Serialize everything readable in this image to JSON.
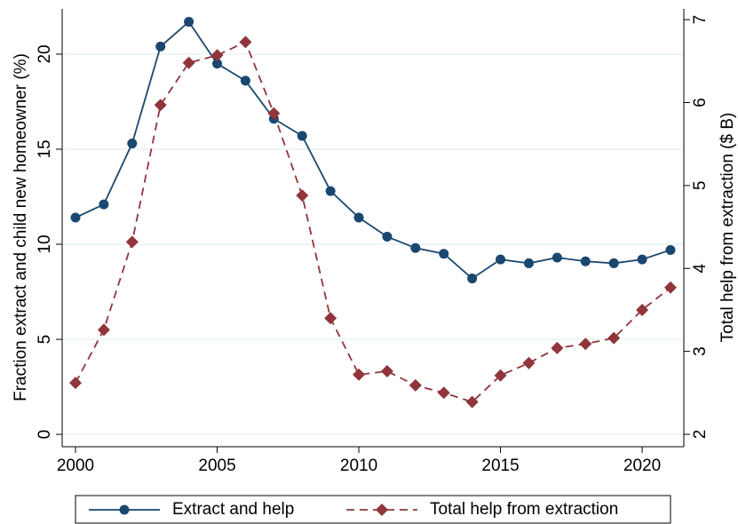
{
  "chart_data": {
    "type": "line",
    "x": [
      2000,
      2001,
      2002,
      2003,
      2004,
      2005,
      2006,
      2007,
      2008,
      2009,
      2010,
      2011,
      2012,
      2013,
      2014,
      2015,
      2016,
      2017,
      2018,
      2019,
      2020,
      2021
    ],
    "series": [
      {
        "name": "Extract and help",
        "color": "#1a476f",
        "marker": "circle",
        "dash": "solid",
        "values": [
          11.4,
          12.1,
          15.3,
          20.4,
          21.7,
          19.5,
          18.6,
          16.6,
          15.7,
          12.8,
          11.4,
          10.4,
          9.8,
          9.5,
          8.2,
          9.2,
          9.0,
          9.3,
          9.1,
          9.0,
          9.2,
          9.7
        ]
      },
      {
        "name": "Total help from extraction",
        "color": "#90353b",
        "marker": "diamond",
        "dash": "dashed",
        "axis": "y2",
        "values": [
          2.62,
          3.26,
          4.32,
          5.97,
          6.48,
          6.57,
          6.73,
          5.87,
          4.88,
          3.4,
          2.72,
          2.76,
          2.59,
          2.5,
          2.39,
          2.71,
          2.86,
          3.04,
          3.09,
          3.16,
          3.5,
          3.77
        ]
      }
    ],
    "ylabel": "Fraction extract and child new homeowner (%)",
    "y2label": "Total help from extraction ($ B)",
    "xlim": [
      1999.53,
      2021.47
    ],
    "xticks": [
      2000,
      2005,
      2010,
      2015,
      2020
    ],
    "ylim": [
      -0.65,
      22.38
    ],
    "yticks": [
      0,
      5,
      10,
      15,
      20
    ],
    "y2lim": [
      1.85,
      7.13
    ],
    "y2ticks": [
      2,
      3,
      4,
      5,
      6,
      7
    ],
    "grid": true,
    "legend": "bottom"
  }
}
